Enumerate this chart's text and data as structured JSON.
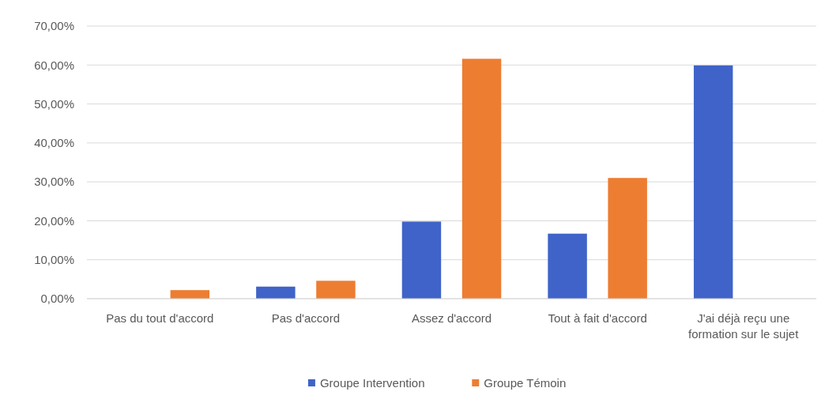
{
  "chart_data": {
    "type": "bar",
    "categories": [
      "Pas du tout d'accord",
      "Pas d'accord",
      "Assez d'accord",
      "Tout à fait d'accord",
      "J'ai déjà reçu une formation sur le sujet"
    ],
    "series": [
      {
        "name": "Groupe Intervention",
        "color": "#3f63c8",
        "values": [
          0,
          3.1,
          19.8,
          16.7,
          59.9
        ]
      },
      {
        "name": "Groupe Témoin",
        "color": "#ed7d31",
        "values": [
          2.2,
          4.6,
          61.6,
          31.0,
          0
        ]
      }
    ],
    "ylim": [
      0,
      70
    ],
    "yticks": [
      {
        "value": 0,
        "label": "0,00%"
      },
      {
        "value": 10,
        "label": "10,00%"
      },
      {
        "value": 20,
        "label": "20,00%"
      },
      {
        "value": 30,
        "label": "30,00%"
      },
      {
        "value": 40,
        "label": "40,00%"
      },
      {
        "value": 50,
        "label": "50,00%"
      },
      {
        "value": 60,
        "label": "60,00%"
      },
      {
        "value": 70,
        "label": "70,00%"
      }
    ],
    "grid": "y",
    "legend": "bottom"
  }
}
